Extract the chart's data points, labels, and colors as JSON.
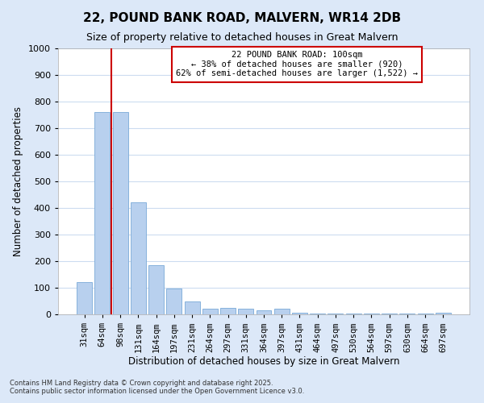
{
  "title": "22, POUND BANK ROAD, MALVERN, WR14 2DB",
  "subtitle": "Size of property relative to detached houses in Great Malvern",
  "xlabel": "Distribution of detached houses by size in Great Malvern",
  "ylabel": "Number of detached properties",
  "categories": [
    "31sqm",
    "64sqm",
    "98sqm",
    "131sqm",
    "164sqm",
    "197sqm",
    "231sqm",
    "264sqm",
    "297sqm",
    "331sqm",
    "364sqm",
    "397sqm",
    "431sqm",
    "464sqm",
    "497sqm",
    "530sqm",
    "564sqm",
    "597sqm",
    "630sqm",
    "664sqm",
    "697sqm"
  ],
  "values": [
    120,
    760,
    760,
    420,
    185,
    97,
    48,
    22,
    25,
    22,
    15,
    22,
    5,
    3,
    3,
    3,
    3,
    3,
    3,
    3,
    5
  ],
  "bar_color": "#b8d0ee",
  "bar_edge_color": "#7aaad8",
  "plot_bg_color": "#ffffff",
  "fig_bg_color": "#dce8f8",
  "grid_color": "#ccdcf0",
  "vline_x_index": 1.5,
  "vline_color": "#cc0000",
  "annotation_text": "22 POUND BANK ROAD: 100sqm\n← 38% of detached houses are smaller (920)\n62% of semi-detached houses are larger (1,522) →",
  "annotation_box_color": "#ffffff",
  "annotation_box_edge": "#cc0000",
  "ylim": [
    0,
    1000
  ],
  "yticks": [
    0,
    100,
    200,
    300,
    400,
    500,
    600,
    700,
    800,
    900,
    1000
  ],
  "footer_line1": "Contains HM Land Registry data © Crown copyright and database right 2025.",
  "footer_line2": "Contains public sector information licensed under the Open Government Licence v3.0."
}
